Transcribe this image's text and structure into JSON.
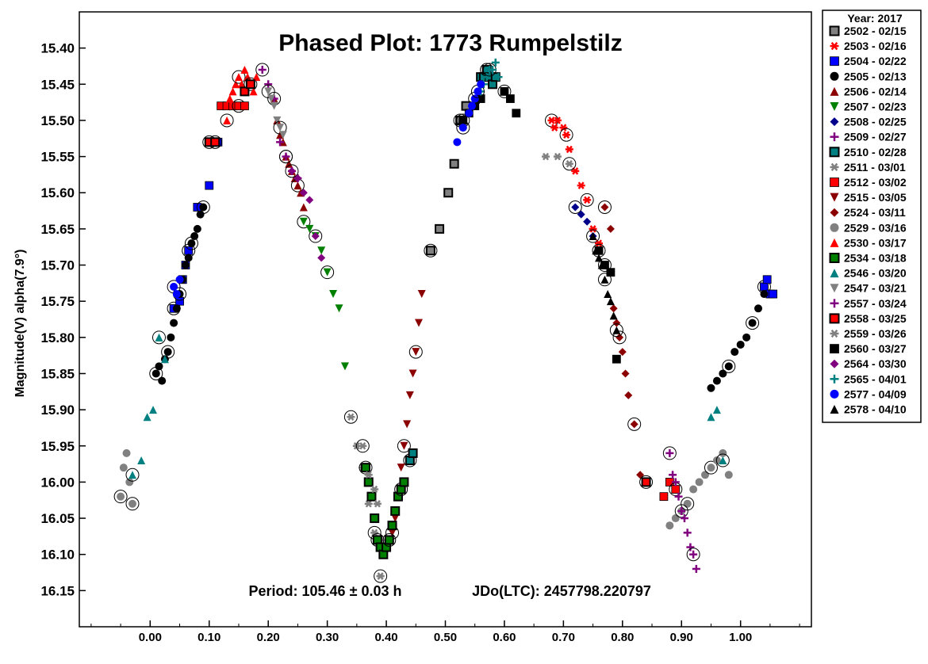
{
  "chart_data": {
    "type": "scatter",
    "title": "Phased Plot: 1773 Rumpelstilz",
    "ylabel": "Magnitude(V) alpha(7.9°)",
    "xlabel": "",
    "footer": {
      "period": "Period: 105.46 ± 0.03 h",
      "jdo": "JDo(LTC): 2457798.220797"
    },
    "xlim": [
      -0.12,
      1.12
    ],
    "ylim": [
      15.35,
      16.2
    ],
    "y_inverted": true,
    "x_ticks": [
      "0.00",
      "0.10",
      "0.20",
      "0.30",
      "0.40",
      "0.50",
      "0.60",
      "0.70",
      "0.80",
      "0.90",
      "1.00"
    ],
    "y_ticks": [
      "15.40",
      "15.45",
      "15.50",
      "15.55",
      "15.60",
      "15.65",
      "15.70",
      "15.75",
      "15.80",
      "15.85",
      "15.90",
      "15.95",
      "16.00",
      "16.05",
      "16.10",
      "16.15"
    ],
    "legend_title": "Year: 2017",
    "legend_placement": "right",
    "series": [
      {
        "name": "2502 - 02/15",
        "marker": "square-outlined",
        "color": "#808080",
        "x": [
          0.475,
          0.49,
          0.505,
          0.515,
          0.525,
          0.535
        ],
        "y": [
          15.68,
          15.65,
          15.6,
          15.56,
          15.5,
          15.48
        ]
      },
      {
        "name": "2503 - 02/16",
        "marker": "asterisk",
        "color": "#ff0000",
        "x": [
          0.68,
          0.685,
          0.69,
          0.7,
          0.705,
          0.71,
          0.72,
          0.73,
          0.74,
          0.75,
          0.76
        ],
        "y": [
          15.5,
          15.51,
          15.5,
          15.51,
          15.52,
          15.54,
          15.57,
          15.59,
          15.61,
          15.65,
          15.67
        ]
      },
      {
        "name": "2504 - 02/22",
        "marker": "square",
        "color": "#0000ff",
        "x": [
          0.04,
          0.05,
          0.055,
          0.06,
          0.065,
          0.08,
          0.1,
          0.115,
          1.04,
          1.045,
          1.05,
          1.055
        ],
        "y": [
          15.76,
          15.75,
          15.72,
          15.7,
          15.68,
          15.62,
          15.59,
          15.53,
          15.73,
          15.72,
          15.74,
          15.74
        ]
      },
      {
        "name": "2505 - 02/13",
        "marker": "circle",
        "color": "#000000",
        "x": [
          0.01,
          0.015,
          0.02,
          0.025,
          0.03,
          0.035,
          0.04,
          0.045,
          0.05,
          0.055,
          0.06,
          0.065,
          0.07,
          0.075,
          0.08,
          0.085,
          0.09,
          0.95,
          0.96,
          0.97,
          0.98,
          0.99,
          1.0,
          1.01,
          1.02,
          1.03,
          1.04
        ],
        "y": [
          15.85,
          15.84,
          15.86,
          15.83,
          15.82,
          15.8,
          15.78,
          15.76,
          15.74,
          15.72,
          15.7,
          15.69,
          15.67,
          15.66,
          15.65,
          15.63,
          15.62,
          15.87,
          15.86,
          15.85,
          15.84,
          15.82,
          15.81,
          15.8,
          15.78,
          15.76,
          15.74
        ]
      },
      {
        "name": "2506 - 02/14",
        "marker": "triangle-up",
        "color": "#8b0000",
        "x": [
          0.21,
          0.215,
          0.22,
          0.225,
          0.23,
          0.235,
          0.24,
          0.245,
          0.25,
          0.255,
          0.26
        ],
        "y": [
          15.47,
          15.5,
          15.52,
          15.53,
          15.55,
          15.56,
          15.57,
          15.58,
          15.59,
          15.6,
          15.62
        ]
      },
      {
        "name": "2507 - 02/23",
        "marker": "triangle-down",
        "color": "#008000",
        "x": [
          0.26,
          0.27,
          0.28,
          0.29,
          0.3,
          0.31,
          0.32,
          0.33
        ],
        "y": [
          15.64,
          15.65,
          15.66,
          15.68,
          15.71,
          15.74,
          15.76,
          15.84
        ]
      },
      {
        "name": "2508 - 02/25",
        "marker": "diamond",
        "color": "#00008b",
        "x": [
          0.72,
          0.73,
          0.74,
          0.75,
          0.76,
          0.77
        ],
        "y": [
          15.62,
          15.63,
          15.64,
          15.66,
          15.68,
          15.7
        ]
      },
      {
        "name": "2509 - 02/27",
        "marker": "plus",
        "color": "#800080",
        "x": [
          0.19,
          0.2,
          0.21,
          0.22,
          0.23,
          0.24,
          0.25
        ],
        "y": [
          15.43,
          15.45,
          15.47,
          15.53,
          15.55,
          15.57,
          15.58
        ]
      },
      {
        "name": "2510 - 02/28",
        "marker": "square-outlined",
        "color": "#008080",
        "x": [
          0.44,
          0.445,
          0.56,
          0.565,
          0.57,
          0.575,
          0.58,
          0.585
        ],
        "y": [
          15.97,
          15.96,
          15.44,
          15.44,
          15.43,
          15.44,
          15.45,
          15.44
        ]
      },
      {
        "name": "2511 - 03/01",
        "marker": "asterisk",
        "color": "#808080",
        "x": [
          0.34,
          0.35,
          0.36,
          0.37,
          0.38,
          0.39,
          0.67,
          0.69,
          0.71
        ],
        "y": [
          15.91,
          15.95,
          15.98,
          16.03,
          16.07,
          16.13,
          15.55,
          15.55,
          15.56
        ]
      },
      {
        "name": "2512 - 03/02",
        "marker": "square",
        "color": "#ff0000",
        "x": [
          0.11,
          0.12,
          0.13,
          0.14,
          0.15,
          0.16,
          0.87,
          0.88,
          0.89
        ],
        "y": [
          15.53,
          15.48,
          15.48,
          15.48,
          15.48,
          15.48,
          16.02,
          16.0,
          16.01
        ]
      },
      {
        "name": "2515 - 03/05",
        "marker": "triangle-down",
        "color": "#8b0000",
        "x": [
          0.41,
          0.415,
          0.42,
          0.425,
          0.43,
          0.435,
          0.44,
          0.445,
          0.45,
          0.455,
          0.46
        ],
        "y": [
          16.07,
          16.05,
          16.02,
          15.98,
          15.95,
          15.92,
          15.88,
          15.85,
          15.82,
          15.78,
          15.74
        ]
      },
      {
        "name": "2524 - 03/11",
        "marker": "diamond",
        "color": "#8b0000",
        "x": [
          0.77,
          0.78,
          0.785,
          0.79,
          0.795,
          0.8,
          0.805,
          0.81,
          0.82,
          0.83,
          0.84
        ],
        "y": [
          15.62,
          15.65,
          15.76,
          15.78,
          15.8,
          15.82,
          15.85,
          15.88,
          15.92,
          15.99,
          16.0
        ]
      },
      {
        "name": "2529 - 03/16",
        "marker": "circle",
        "color": "#808080",
        "x": [
          -0.05,
          -0.045,
          -0.04,
          -0.035,
          -0.03,
          0.88,
          0.89,
          0.9,
          0.91,
          0.92,
          0.93,
          0.94,
          0.95,
          0.96,
          0.97,
          0.98
        ],
        "y": [
          16.02,
          15.98,
          15.96,
          16.0,
          16.03,
          16.06,
          16.05,
          16.04,
          16.03,
          16.01,
          16.0,
          15.99,
          15.98,
          15.97,
          15.96,
          15.99
        ]
      },
      {
        "name": "2530 - 03/17",
        "marker": "triangle-up",
        "color": "#ff0000",
        "x": [
          0.13,
          0.135,
          0.14,
          0.145,
          0.15,
          0.155,
          0.16,
          0.165,
          0.17,
          0.175,
          0.18
        ],
        "y": [
          15.5,
          15.47,
          15.46,
          15.45,
          15.44,
          15.45,
          15.43,
          15.44,
          15.45,
          15.46,
          15.44
        ]
      },
      {
        "name": "2534 - 03/18",
        "marker": "square-outlined",
        "color": "#008000",
        "x": [
          0.365,
          0.37,
          0.375,
          0.38,
          0.385,
          0.39,
          0.395,
          0.4,
          0.405,
          0.41,
          0.415,
          0.42,
          0.425,
          0.43
        ],
        "y": [
          15.98,
          16.0,
          16.02,
          16.05,
          16.08,
          16.09,
          16.1,
          16.09,
          16.08,
          16.06,
          16.04,
          16.02,
          16.01,
          16.0
        ]
      },
      {
        "name": "2546 - 03/20",
        "marker": "triangle-up",
        "color": "#008080",
        "x": [
          -0.03,
          -0.015,
          -0.005,
          0.005,
          0.015,
          0.025,
          0.95,
          0.96,
          0.97
        ],
        "y": [
          15.99,
          15.97,
          15.91,
          15.9,
          15.8,
          15.83,
          15.91,
          15.9,
          15.97
        ]
      },
      {
        "name": "2547 - 03/21",
        "marker": "triangle-down",
        "color": "#808080",
        "x": [
          0.2,
          0.205,
          0.21,
          0.215,
          0.22,
          0.225
        ],
        "y": [
          15.46,
          15.47,
          15.48,
          15.5,
          15.51,
          15.52
        ]
      },
      {
        "name": "2557 - 03/24",
        "marker": "plus",
        "color": "#800080",
        "x": [
          0.88,
          0.885,
          0.89,
          0.895,
          0.9,
          0.905,
          0.91,
          0.915,
          0.92,
          0.925
        ],
        "y": [
          15.96,
          15.99,
          16.0,
          16.02,
          16.04,
          16.05,
          16.07,
          16.09,
          16.1,
          16.12
        ]
      },
      {
        "name": "2558 - 03/25",
        "marker": "square-outlined",
        "color": "#ff0000",
        "x": [
          0.1,
          0.11,
          0.16,
          0.17,
          0.84
        ],
        "y": [
          15.53,
          15.53,
          15.46,
          15.45,
          16.0
        ]
      },
      {
        "name": "2559 - 03/26",
        "marker": "asterisk",
        "color": "#808080",
        "x": [
          0.36,
          0.37,
          0.38,
          0.385,
          0.39
        ],
        "y": [
          15.95,
          15.99,
          16.01,
          16.03,
          16.13
        ]
      },
      {
        "name": "2560 - 03/27",
        "marker": "square",
        "color": "#000000",
        "x": [
          0.53,
          0.54,
          0.55,
          0.56,
          0.6,
          0.61,
          0.62,
          0.76,
          0.77,
          0.78,
          0.79
        ],
        "y": [
          15.5,
          15.49,
          15.48,
          15.47,
          15.46,
          15.47,
          15.49,
          15.68,
          15.7,
          15.71,
          15.83
        ]
      },
      {
        "name": "2564 - 03/30",
        "marker": "diamond",
        "color": "#800080",
        "x": [
          0.24,
          0.25,
          0.26,
          0.27,
          0.28,
          0.29
        ],
        "y": [
          15.57,
          15.58,
          15.6,
          15.61,
          15.66,
          15.69
        ]
      },
      {
        "name": "2565 - 04/01",
        "marker": "plus",
        "color": "#008080",
        "x": [
          0.55,
          0.56,
          0.565,
          0.57,
          0.575,
          0.58,
          0.585,
          0.59
        ],
        "y": [
          15.47,
          15.46,
          15.45,
          15.44,
          15.43,
          15.43,
          15.42,
          15.44
        ]
      },
      {
        "name": "2577 - 04/09",
        "marker": "circle",
        "color": "#0000ff",
        "x": [
          0.04,
          0.045,
          0.05,
          0.52,
          0.53,
          0.54,
          0.545,
          0.55,
          0.555,
          0.56
        ],
        "y": [
          15.73,
          15.74,
          15.72,
          15.53,
          15.51,
          15.49,
          15.48,
          15.47,
          15.46,
          15.45
        ]
      },
      {
        "name": "2578 - 04/10",
        "marker": "triangle-up",
        "color": "#000000",
        "x": [
          0.75,
          0.755,
          0.76,
          0.765,
          0.77,
          0.775,
          0.78,
          0.785,
          0.79
        ],
        "y": [
          15.66,
          15.68,
          15.69,
          15.7,
          15.72,
          15.74,
          15.75,
          15.77,
          15.79
        ]
      }
    ]
  }
}
